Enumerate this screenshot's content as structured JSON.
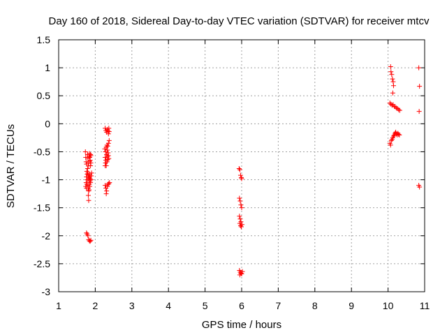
{
  "chart_data": {
    "type": "scatter",
    "title": "Day 160 of 2018, Sidereal Day-to-day VTEC variation (SDTVAR) for receiver mtcv",
    "xlabel": "GPS time / hours",
    "ylabel": "SDTVAR / TECUs",
    "xlim": [
      1,
      11
    ],
    "ylim": [
      -3,
      1.5
    ],
    "xticks": [
      "1",
      "2",
      "3",
      "4",
      "5",
      "6",
      "7",
      "8",
      "9",
      "10",
      "11"
    ],
    "yticks": [
      "1.5",
      "1",
      "0.5",
      "0",
      "-0.5",
      "-1",
      "-1.5",
      "-2",
      "-2.5",
      "-3"
    ],
    "grid": true,
    "marker": "+",
    "color": "#ff0000",
    "series": [
      {
        "name": "SDTVAR",
        "points": [
          [
            1.73,
            -0.5
          ],
          [
            1.74,
            -0.6
          ],
          [
            1.75,
            -0.68
          ],
          [
            1.76,
            -0.72
          ],
          [
            1.77,
            -0.85
          ],
          [
            1.78,
            -0.9
          ],
          [
            1.75,
            -1.05
          ],
          [
            1.74,
            -1.12
          ],
          [
            1.76,
            -1.15
          ],
          [
            1.78,
            -1.0
          ],
          [
            1.79,
            -0.55
          ],
          [
            1.8,
            -0.62
          ],
          [
            1.81,
            -0.7
          ],
          [
            1.82,
            -0.75
          ],
          [
            1.83,
            -0.58
          ],
          [
            1.84,
            -0.53
          ],
          [
            1.85,
            -0.6
          ],
          [
            1.86,
            -0.65
          ],
          [
            1.87,
            -0.55
          ],
          [
            1.88,
            -0.57
          ],
          [
            1.79,
            -0.8
          ],
          [
            1.8,
            -0.88
          ],
          [
            1.81,
            -0.92
          ],
          [
            1.82,
            -0.97
          ],
          [
            1.83,
            -1.02
          ],
          [
            1.84,
            -0.95
          ],
          [
            1.85,
            -0.9
          ],
          [
            1.86,
            -0.98
          ],
          [
            1.87,
            -1.05
          ],
          [
            1.88,
            -1.0
          ],
          [
            1.89,
            -0.93
          ],
          [
            1.9,
            -0.88
          ],
          [
            1.8,
            -1.1
          ],
          [
            1.81,
            -1.15
          ],
          [
            1.82,
            -1.2
          ],
          [
            1.83,
            -1.18
          ],
          [
            1.84,
            -1.08
          ],
          [
            1.85,
            -1.12
          ],
          [
            1.86,
            -1.02
          ],
          [
            1.81,
            -1.28
          ],
          [
            1.82,
            -1.37
          ],
          [
            1.87,
            -0.75
          ],
          [
            1.88,
            -0.7
          ],
          [
            1.85,
            -0.67
          ],
          [
            1.77,
            -1.08
          ],
          [
            1.76,
            -0.95
          ],
          [
            1.76,
            -1.95
          ],
          [
            1.78,
            -1.97
          ],
          [
            1.8,
            -2.0
          ],
          [
            1.82,
            -2.07
          ],
          [
            1.84,
            -2.09
          ],
          [
            1.86,
            -2.1
          ],
          [
            1.88,
            -2.08
          ],
          [
            2.27,
            -0.08
          ],
          [
            2.29,
            -0.12
          ],
          [
            2.31,
            -0.15
          ],
          [
            2.33,
            -0.1
          ],
          [
            2.35,
            -0.13
          ],
          [
            2.37,
            -0.08
          ],
          [
            2.38,
            -0.14
          ],
          [
            2.36,
            -0.18
          ],
          [
            2.26,
            -0.45
          ],
          [
            2.28,
            -0.5
          ],
          [
            2.3,
            -0.42
          ],
          [
            2.32,
            -0.38
          ],
          [
            2.34,
            -0.4
          ],
          [
            2.36,
            -0.35
          ],
          [
            2.38,
            -0.3
          ],
          [
            2.33,
            -0.47
          ],
          [
            2.27,
            -0.6
          ],
          [
            2.29,
            -0.65
          ],
          [
            2.31,
            -0.55
          ],
          [
            2.33,
            -0.58
          ],
          [
            2.35,
            -0.52
          ],
          [
            2.37,
            -0.62
          ],
          [
            2.28,
            -0.7
          ],
          [
            2.3,
            -0.75
          ],
          [
            2.32,
            -0.68
          ],
          [
            2.34,
            -0.64
          ],
          [
            2.36,
            -0.57
          ],
          [
            2.27,
            -0.75
          ],
          [
            2.27,
            -1.1
          ],
          [
            2.29,
            -1.15
          ],
          [
            2.31,
            -1.2
          ],
          [
            2.3,
            -1.25
          ],
          [
            2.33,
            -1.12
          ],
          [
            2.35,
            -1.08
          ],
          [
            2.37,
            -1.07
          ],
          [
            2.39,
            -1.05
          ],
          [
            5.93,
            -0.8
          ],
          [
            5.95,
            -0.82
          ],
          [
            5.97,
            -0.92
          ],
          [
            5.99,
            -0.96
          ],
          [
            6.0,
            -0.98
          ],
          [
            5.94,
            -1.33
          ],
          [
            5.96,
            -1.38
          ],
          [
            5.98,
            -1.45
          ],
          [
            6.0,
            -1.5
          ],
          [
            5.94,
            -1.65
          ],
          [
            5.96,
            -1.7
          ],
          [
            5.95,
            -1.78
          ],
          [
            5.97,
            -1.82
          ],
          [
            5.99,
            -1.84
          ],
          [
            6.01,
            -1.8
          ],
          [
            5.98,
            -1.75
          ],
          [
            5.94,
            -2.62
          ],
          [
            5.96,
            -2.65
          ],
          [
            5.98,
            -2.67
          ],
          [
            6.0,
            -2.68
          ],
          [
            5.95,
            -2.7
          ],
          [
            6.02,
            -2.64
          ],
          [
            10.07,
            1.02
          ],
          [
            10.08,
            0.93
          ],
          [
            10.1,
            0.88
          ],
          [
            10.12,
            0.8
          ],
          [
            10.14,
            0.75
          ],
          [
            10.15,
            0.68
          ],
          [
            10.13,
            0.55
          ],
          [
            10.05,
            0.37
          ],
          [
            10.08,
            0.35
          ],
          [
            10.11,
            0.33
          ],
          [
            10.14,
            0.34
          ],
          [
            10.17,
            0.31
          ],
          [
            10.2,
            0.3
          ],
          [
            10.23,
            0.28
          ],
          [
            10.26,
            0.27
          ],
          [
            10.29,
            0.25
          ],
          [
            10.32,
            0.24
          ],
          [
            10.05,
            -0.35
          ],
          [
            10.07,
            -0.38
          ],
          [
            10.09,
            -0.3
          ],
          [
            10.11,
            -0.28
          ],
          [
            10.13,
            -0.25
          ],
          [
            10.15,
            -0.22
          ],
          [
            10.17,
            -0.2
          ],
          [
            10.19,
            -0.17
          ],
          [
            10.21,
            -0.15
          ],
          [
            10.23,
            -0.18
          ],
          [
            10.25,
            -0.2
          ],
          [
            10.27,
            -0.17
          ],
          [
            10.29,
            -0.19
          ],
          [
            10.31,
            -0.2
          ],
          [
            10.84,
            1.0
          ],
          [
            10.86,
            0.67
          ],
          [
            10.85,
            0.22
          ],
          [
            10.84,
            -1.1
          ],
          [
            10.86,
            -1.13
          ]
        ]
      }
    ]
  }
}
